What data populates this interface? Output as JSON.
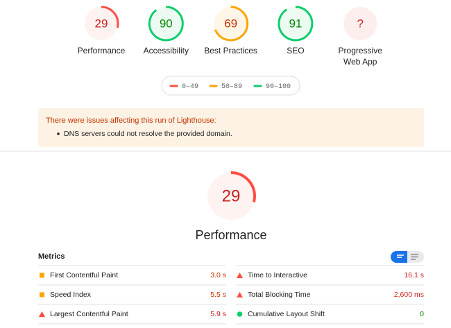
{
  "gauges": [
    {
      "score": 29,
      "label": [
        "Performance"
      ],
      "color": "#ff4e42",
      "text_color": "#c7221f",
      "fill": "#fff3f2"
    },
    {
      "score": 90,
      "label": [
        "Accessibility"
      ],
      "color": "#0cce6b",
      "text_color": "#008800",
      "fill": "#ecfaf2"
    },
    {
      "score": 69,
      "label": [
        "Best Practices"
      ],
      "color": "#ffa400",
      "text_color": "#c33300",
      "fill": "#fff6e8"
    },
    {
      "score": 91,
      "label": [
        "SEO"
      ],
      "color": "#0cce6b",
      "text_color": "#008800",
      "fill": "#ecfaf2"
    },
    {
      "score": "?",
      "label": [
        "Progressive",
        "Web App"
      ],
      "color": "#ff4e42",
      "text_color": "#c7221f",
      "fill": "#fdeeee"
    }
  ],
  "legend": [
    {
      "label": "0–49",
      "color": "#ff4e42"
    },
    {
      "label": "50–89",
      "color": "#ffa400"
    },
    {
      "label": "90–100",
      "color": "#0cce6b"
    }
  ],
  "warning": {
    "title": "There were issues affecting this run of Lighthouse:",
    "items": [
      "DNS servers could not resolve the provided domain."
    ]
  },
  "category": {
    "score": 29,
    "title": "Performance",
    "color": "#ff4e42",
    "text_color": "#c7221f",
    "fill": "#fff3f2"
  },
  "metrics": {
    "title": "Metrics",
    "items": [
      {
        "name": "First Contentful Paint",
        "value": "3.0 s",
        "icon": "square",
        "color": "#ffa400",
        "text_color": "#c33300"
      },
      {
        "name": "Time to Interactive",
        "value": "16.1 s",
        "icon": "triangle",
        "color": "#ff4e42",
        "text_color": "#c7221f"
      },
      {
        "name": "Speed Index",
        "value": "5.5 s",
        "icon": "square",
        "color": "#ffa400",
        "text_color": "#c33300"
      },
      {
        "name": "Total Blocking Time",
        "value": "2,600 ms",
        "icon": "triangle",
        "color": "#ff4e42",
        "text_color": "#c7221f"
      },
      {
        "name": "Largest Contentful Paint",
        "value": "5.9 s",
        "icon": "triangle",
        "color": "#ff4e42",
        "text_color": "#c7221f"
      },
      {
        "name": "Cumulative Layout Shift",
        "value": "0",
        "icon": "circle",
        "color": "#0cce6b",
        "text_color": "#008800"
      }
    ]
  }
}
